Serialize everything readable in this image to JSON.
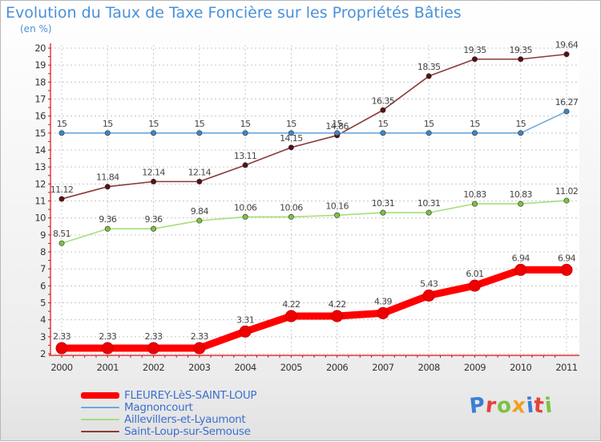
{
  "title": "Evolution du Taux de Taxe Foncière sur les Propriétés Bâties",
  "unit_label": "(en %)",
  "brand": {
    "text": "Proxiti",
    "letter_colors": [
      "#3a7fd5",
      "#e8403a",
      "#7cc242",
      "#f0a020",
      "#3a7fd5",
      "#e8403a",
      "#7cc242"
    ]
  },
  "chart_data": {
    "type": "line",
    "title": "Evolution du Taux de Taxe Foncière sur les Propriétés Bâties",
    "ylabel": "(en %)",
    "xlabel": "",
    "x": [
      "2000",
      "2001",
      "2002",
      "2003",
      "2004",
      "2005",
      "2006",
      "2007",
      "2008",
      "2009",
      "2010",
      "2011"
    ],
    "ylim": [
      2,
      20
    ],
    "yticks": [
      "2",
      "3",
      "4",
      "5",
      "6",
      "7",
      "8",
      "9",
      "10",
      "11",
      "12",
      "13",
      "14",
      "15",
      "16",
      "17",
      "18",
      "19",
      "20"
    ],
    "grid": true,
    "legend_position": "bottom-left",
    "series": [
      {
        "name": "FLEUREY-LèS-SAINT-LOUP",
        "color": "#ff0000",
        "marker_color": "#ee0000",
        "emphasis": "thick",
        "values": [
          2.33,
          2.33,
          2.33,
          2.33,
          3.31,
          4.22,
          4.22,
          4.39,
          5.43,
          6.01,
          6.94,
          6.94
        ],
        "labels": [
          "2.33",
          "2.33",
          "2.33",
          "2.33",
          "3.31",
          "4.22",
          "4.22",
          "4.39",
          "5.43",
          "6.01",
          "6.94",
          "6.94"
        ]
      },
      {
        "name": "Magnoncourt",
        "color": "#6fa8dc",
        "marker_color": "#3d85c6",
        "emphasis": "thin",
        "values": [
          15,
          15,
          15,
          15,
          15,
          15,
          15,
          15,
          15,
          15,
          15,
          16.27
        ],
        "labels": [
          "15",
          "15",
          "15",
          "15",
          "15",
          "15",
          "15",
          "15",
          "15",
          "15",
          "15",
          "16.27"
        ]
      },
      {
        "name": "Aillevillers-et-Lyaumont",
        "color": "#a5df7a",
        "marker_color": "#7cc242",
        "emphasis": "thin",
        "values": [
          8.51,
          9.36,
          9.36,
          9.84,
          10.06,
          10.06,
          10.16,
          10.31,
          10.31,
          10.83,
          10.83,
          11.02
        ],
        "labels": [
          "8.51",
          "9.36",
          "9.36",
          "9.84",
          "10.06",
          "10.06",
          "10.16",
          "10.31",
          "10.31",
          "10.83",
          "10.83",
          "11.02"
        ]
      },
      {
        "name": "Saint-Loup-sur-Semouse",
        "color": "#8b3a3a",
        "marker_color": "#5a1010",
        "emphasis": "thin",
        "values": [
          11.12,
          11.84,
          12.14,
          12.14,
          13.11,
          14.15,
          14.86,
          16.35,
          18.35,
          19.35,
          19.35,
          19.64
        ],
        "labels": [
          "11.12",
          "11.84",
          "12.14",
          "12.14",
          "13.11",
          "14.15",
          "14.86",
          "16.35",
          "18.35",
          "19.35",
          "19.35",
          "19.64"
        ]
      }
    ]
  }
}
